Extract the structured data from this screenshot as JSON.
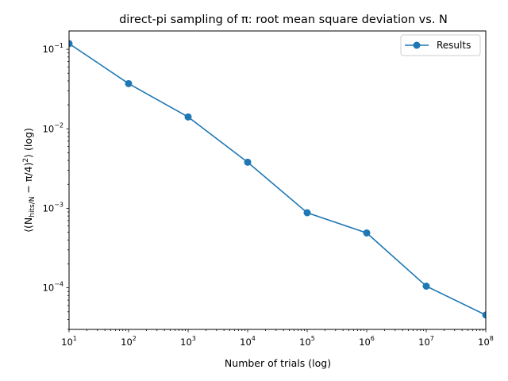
{
  "chart_data": {
    "type": "line",
    "title": "direct-pi sampling of π: root mean square deviation vs. N",
    "xlabel": "Number of trials (log)",
    "ylabel": {
      "open": "⟨(N",
      "sub": "hits/N",
      "rest": " − π/4)",
      "sup": "2",
      "close": "⟩ (log)"
    },
    "xscale": "log",
    "yscale": "log",
    "xlim": [
      10,
      100000000
    ],
    "ylim": [
      3e-05,
      0.17
    ],
    "grid": false,
    "legend_position": "top-right",
    "x_ticks": [
      {
        "value": 10,
        "base": "10",
        "exp": "1"
      },
      {
        "value": 100,
        "base": "10",
        "exp": "2"
      },
      {
        "value": 1000,
        "base": "10",
        "exp": "3"
      },
      {
        "value": 10000,
        "base": "10",
        "exp": "4"
      },
      {
        "value": 100000,
        "base": "10",
        "exp": "5"
      },
      {
        "value": 1000000,
        "base": "10",
        "exp": "6"
      },
      {
        "value": 10000000,
        "base": "10",
        "exp": "7"
      },
      {
        "value": 100000000,
        "base": "10",
        "exp": "8"
      }
    ],
    "y_ticks": [
      {
        "value": 0.0001,
        "base": "10",
        "exp": "−4"
      },
      {
        "value": 0.001,
        "base": "10",
        "exp": "−3"
      },
      {
        "value": 0.01,
        "base": "10",
        "exp": "−2"
      },
      {
        "value": 0.1,
        "base": "10",
        "exp": "−1"
      }
    ],
    "series": [
      {
        "name": "Results",
        "color": "#1f77b4",
        "x": [
          10,
          100,
          1000,
          10000,
          100000,
          1000000,
          10000000,
          100000000
        ],
        "y": [
          0.118,
          0.037,
          0.0141,
          0.0038,
          0.00088,
          0.00049,
          0.000105,
          4.55e-05
        ]
      }
    ]
  }
}
